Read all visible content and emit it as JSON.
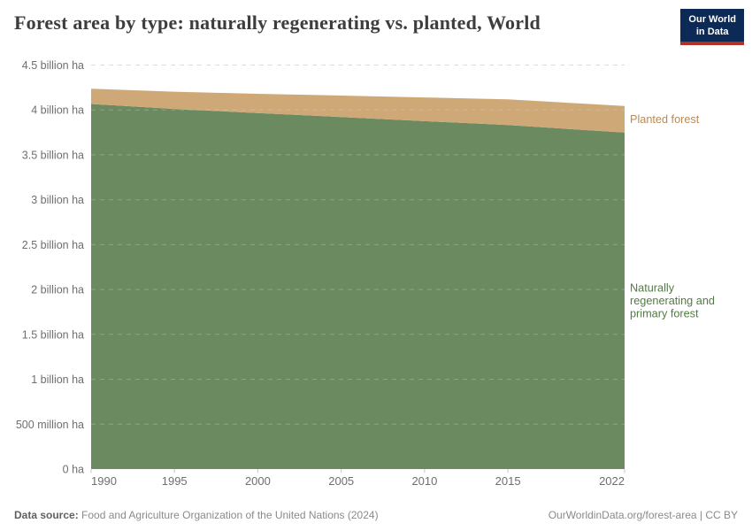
{
  "header": {
    "title": "Forest area by type: naturally regenerating vs. planted, World",
    "logo": {
      "line1": "Our World",
      "line2": "in Data",
      "bg_color": "#0c2a55",
      "stripe_color": "#b13127"
    }
  },
  "chart_data": {
    "type": "area",
    "stacked": true,
    "title": "Forest area by type: naturally regenerating vs. planted, World",
    "x": [
      1990,
      1995,
      2000,
      2005,
      2010,
      2015,
      2020,
      2022
    ],
    "xlim": [
      1990,
      2022
    ],
    "ylim": [
      0,
      4.5
    ],
    "y_unit": "billion ha",
    "grid": "dashed",
    "legend_position": "right-of-area",
    "series": [
      {
        "id": "natural",
        "name": "Naturally regenerating and primary forest",
        "label_lines": [
          "Naturally",
          "regenerating and",
          "primary forest"
        ],
        "color": "#6c8a60",
        "label_color": "#537b41",
        "values": [
          4.066,
          4.011,
          3.966,
          3.921,
          3.875,
          3.833,
          3.772,
          3.749
        ]
      },
      {
        "id": "planted",
        "name": "Planted forest",
        "label_lines": [
          "Planted forest"
        ],
        "color": "#cfa878",
        "label_color": "#b98a58",
        "values": [
          0.17,
          0.192,
          0.214,
          0.239,
          0.264,
          0.285,
          0.293,
          0.296
        ]
      }
    ],
    "yticks": [
      {
        "value": 0,
        "label": "0 ha"
      },
      {
        "value": 0.5,
        "label": "500 million ha"
      },
      {
        "value": 1,
        "label": "1 billion ha"
      },
      {
        "value": 1.5,
        "label": "1.5 billion ha"
      },
      {
        "value": 2,
        "label": "2 billion ha"
      },
      {
        "value": 2.5,
        "label": "2.5 billion ha"
      },
      {
        "value": 3,
        "label": "3 billion ha"
      },
      {
        "value": 3.5,
        "label": "3.5 billion ha"
      },
      {
        "value": 4,
        "label": "4 billion ha"
      },
      {
        "value": 4.5,
        "label": "4.5 billion ha"
      }
    ],
    "xticks": [
      1990,
      1995,
      2000,
      2005,
      2010,
      2015,
      2022
    ]
  },
  "footer": {
    "source_label": "Data source:",
    "source_text": " Food and Agriculture Organization of the United Nations (2024)",
    "credit": "OurWorldinData.org/forest-area | CC BY"
  }
}
